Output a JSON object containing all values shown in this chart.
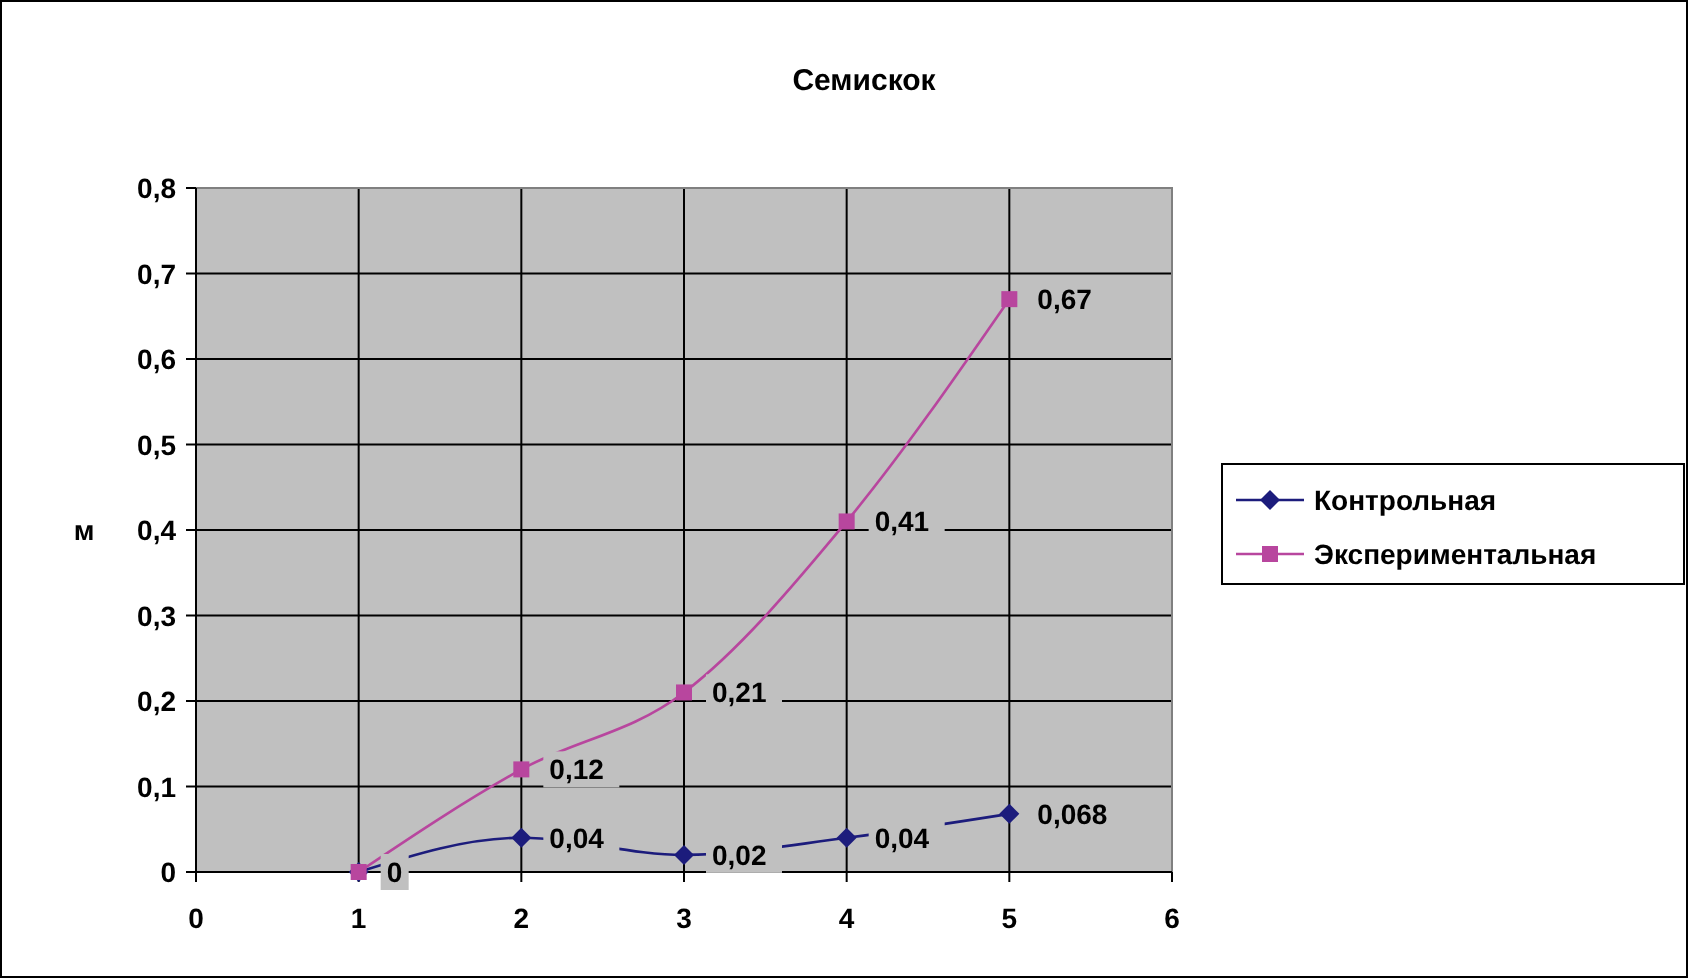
{
  "chart_data": {
    "type": "line",
    "title": "Семискок",
    "ylabel": "м",
    "x": [
      1,
      2,
      3,
      4,
      5
    ],
    "series": [
      {
        "name": "Контрольная",
        "color": "#1c1c7c",
        "values": [
          0,
          0.04,
          0.02,
          0.04,
          0.068
        ],
        "marker": "diamond",
        "value_labels": [
          null,
          "0,04",
          "0,02",
          "0,04",
          "0,068"
        ]
      },
      {
        "name": "Экспериментальная",
        "color": "#b8469e",
        "values": [
          0,
          0.12,
          0.21,
          0.41,
          0.67
        ],
        "marker": "square",
        "value_labels": [
          "0",
          "0,12",
          "0,21",
          "0,41",
          "0,67"
        ]
      }
    ],
    "xlim": [
      0,
      6
    ],
    "xticks": [
      0,
      1,
      2,
      3,
      4,
      5,
      6
    ],
    "ylim": [
      0,
      0.8
    ],
    "yticks": [
      0,
      {
        "value": 0.1,
        "label": "0,1"
      },
      {
        "value": 0.2,
        "label": "0,2"
      },
      {
        "value": 0.3,
        "label": "0,3"
      },
      {
        "value": 0.4,
        "label": "0,4"
      },
      {
        "value": 0.5,
        "label": "0,5"
      },
      {
        "value": 0.6,
        "label": "0,6"
      },
      {
        "value": 0.7,
        "label": "0,7"
      },
      {
        "value": 0.8,
        "label": "0,8"
      }
    ],
    "grid": true,
    "legend": "right"
  }
}
